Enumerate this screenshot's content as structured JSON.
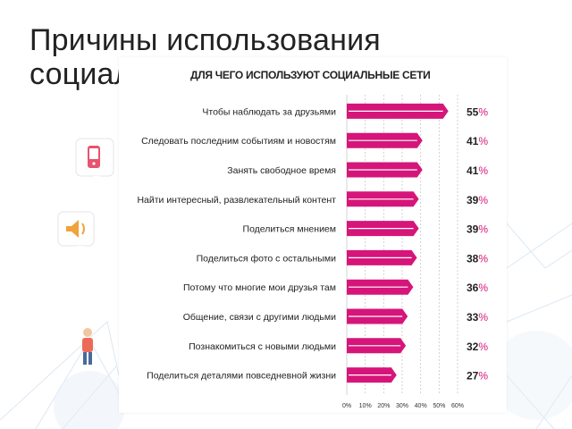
{
  "slide": {
    "title": "Причины использования социальных сетей"
  },
  "icons": [
    "phone-icon",
    "speaker-icon",
    "person-icon"
  ],
  "colors": {
    "bar": "#d6157a",
    "grid": "#c8c8c8",
    "value_text": "#222222",
    "percent_sign": "#d6157a",
    "decor": "#dbe8f3"
  },
  "chart_data": {
    "type": "bar",
    "orientation": "horizontal",
    "title": "ДЛЯ ЧЕГО ИСПОЛЬЗУЮТ СОЦИАЛЬНЫЕ СЕТИ",
    "categories": [
      "Чтобы наблюдать за друзьями",
      "Следовать последним событиям и новостям",
      "Занять свободное время",
      "Найти интересный, развлекательный контент",
      "Поделиться мнением",
      "Поделиться фото с остальными",
      "Потому что многие мои друзья там",
      "Общение, связи с другими людьми",
      "Познакомиться с новыми людьми",
      "Поделиться деталями повседневной жизни"
    ],
    "values": [
      55,
      41,
      41,
      39,
      39,
      38,
      36,
      33,
      32,
      27
    ],
    "value_labels": [
      "55%",
      "41%",
      "41%",
      "39%",
      "39%",
      "38%",
      "36%",
      "33%",
      "32%",
      "27%"
    ],
    "xticks": [
      "0%",
      "10%",
      "20%",
      "30%",
      "40%",
      "50%",
      "60%"
    ],
    "xlim": [
      0,
      60
    ],
    "grid": true
  }
}
